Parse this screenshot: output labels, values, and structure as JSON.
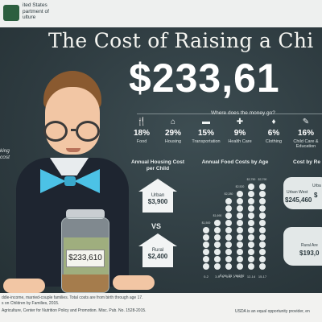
{
  "header": {
    "agency_lines": [
      "ited States",
      "partment of",
      "ulture"
    ]
  },
  "title": "The Cost of Raising a Chi",
  "total": "$233,61",
  "where_label": "Where does the money go?",
  "categories": [
    {
      "icon": "food-icon",
      "pct": "18%",
      "label": "Food"
    },
    {
      "icon": "house-icon",
      "pct": "29%",
      "label": "Housing"
    },
    {
      "icon": "car-icon",
      "pct": "15%",
      "label": "Transportation"
    },
    {
      "icon": "health-icon",
      "pct": "9%",
      "label": "Health Care"
    },
    {
      "icon": "clothing-icon",
      "pct": "6%",
      "label": "Clothing"
    },
    {
      "icon": "childcare-icon",
      "pct": "16%",
      "label": "Child Care & Education"
    }
  ],
  "side_text": [
    "king",
    "cost"
  ],
  "housing": {
    "title": "Annual Housing Cost per Child",
    "urban_label": "Urban",
    "urban_value": "$3,900",
    "vs": "VS",
    "rural_label": "Rural",
    "rural_value": "$2,400"
  },
  "food": {
    "title": "Annual Food Costs by Age",
    "age_note": "Age in years",
    "chart_data": {
      "type": "bar",
      "categories": [
        "0-2",
        "3-5",
        "6-8",
        "9-11",
        "12-14",
        "15-17"
      ],
      "values": [
        1500,
        1690,
        2280,
        2520,
        2750,
        2790
      ],
      "value_labels": [
        "$1,500",
        "$1,690",
        "$2,280",
        "$2,520",
        "$2,750",
        "$2,790"
      ],
      "ylabel": "",
      "xlabel": "Age in years"
    }
  },
  "region": {
    "title": "Cost by Re",
    "urban_west_label": "Urban West",
    "urban_west_value": "$245,460",
    "urban_south_label": "Urba",
    "urban_south_value": "$",
    "rural_label": "Rural Are",
    "rural_value": "$193,0"
  },
  "jar_label": "$233,610",
  "footnotes": {
    "line1": "ddle-income, married-couple families. Total costs are from birth through age 17.",
    "line2": "s on Children by Families, 2015.",
    "line3": "Agriculture, Center for Nutrition Policy and Promotion. Misc. Pub. No. 1528-2015.",
    "line4": "USDA is an equal opportunity provider, en"
  }
}
